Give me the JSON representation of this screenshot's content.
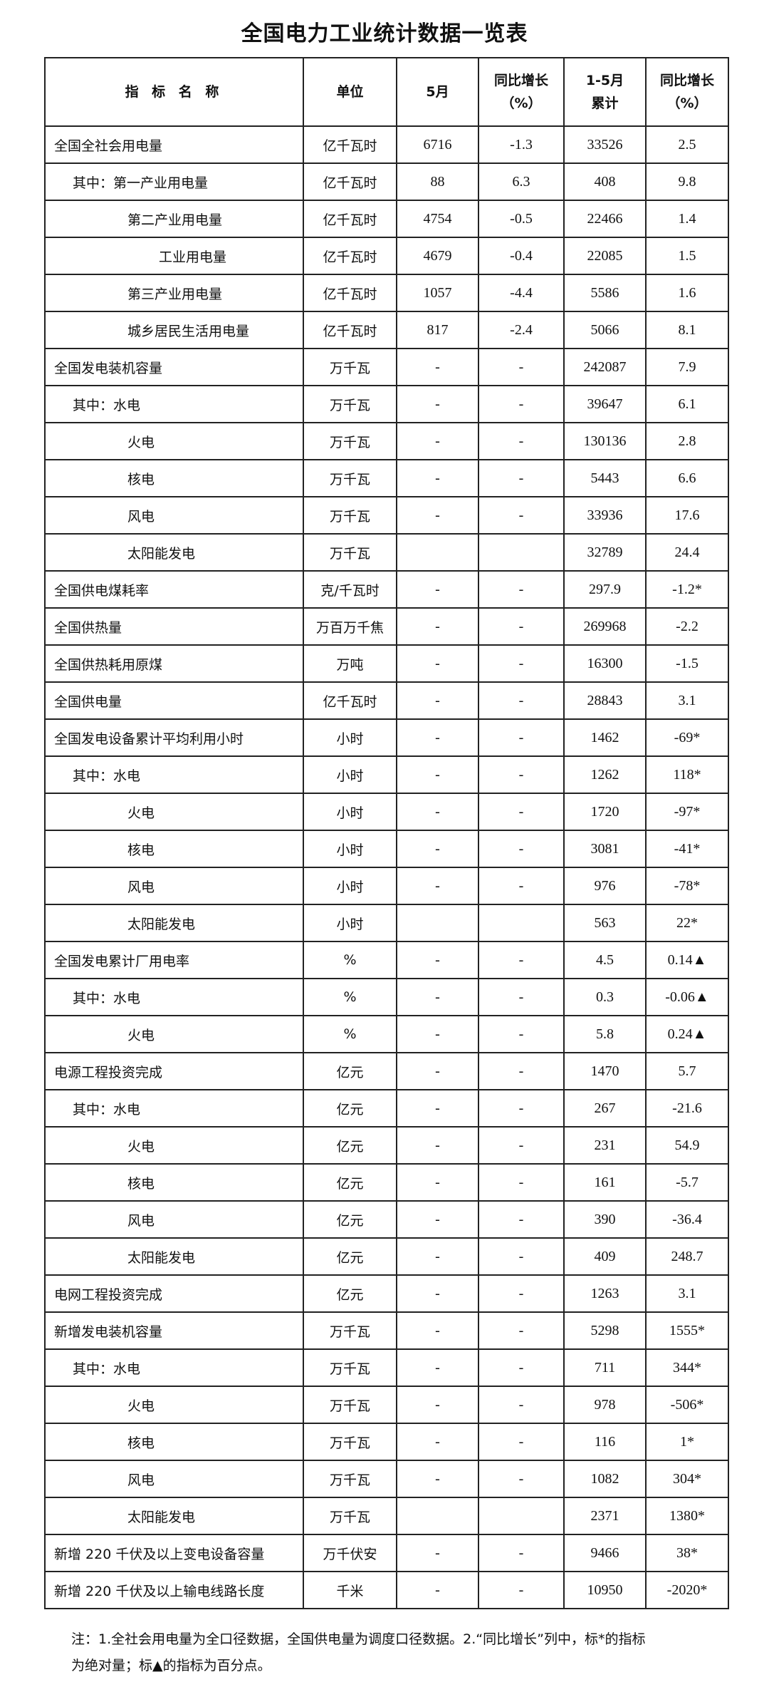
{
  "title": "全国电力工业统计数据一览表",
  "headers": [
    "指 标 名 称",
    "单位",
    "5月",
    "同比增长\n（%）",
    "1-5月\n累计",
    "同比增长\n（%）"
  ],
  "rows": [
    {
      "name": "全国全社会用电量",
      "level": 0,
      "unit": "亿千瓦时",
      "m5": "6716",
      "m5_yoy": "-1.3",
      "cum": "33526",
      "cum_yoy": "2.5"
    },
    {
      "name": "其中：第一产业用电量",
      "level": 1,
      "unit": "亿千瓦时",
      "m5": "88",
      "m5_yoy": "6.3",
      "cum": "408",
      "cum_yoy": "9.8"
    },
    {
      "name": "第二产业用电量",
      "level": 2,
      "unit": "亿千瓦时",
      "m5": "4754",
      "m5_yoy": "-0.5",
      "cum": "22466",
      "cum_yoy": "1.4"
    },
    {
      "name": "工业用电量",
      "level": 3,
      "unit": "亿千瓦时",
      "m5": "4679",
      "m5_yoy": "-0.4",
      "cum": "22085",
      "cum_yoy": "1.5"
    },
    {
      "name": "第三产业用电量",
      "level": 2,
      "unit": "亿千瓦时",
      "m5": "1057",
      "m5_yoy": "-4.4",
      "cum": "5586",
      "cum_yoy": "1.6"
    },
    {
      "name": "城乡居民生活用电量",
      "level": 2,
      "unit": "亿千瓦时",
      "m5": "817",
      "m5_yoy": "-2.4",
      "cum": "5066",
      "cum_yoy": "8.1"
    },
    {
      "name": "全国发电装机容量",
      "level": 0,
      "unit": "万千瓦",
      "m5": "-",
      "m5_yoy": "-",
      "cum": "242087",
      "cum_yoy": "7.9"
    },
    {
      "name": "其中：水电",
      "level": 1,
      "unit": "万千瓦",
      "m5": "-",
      "m5_yoy": "-",
      "cum": "39647",
      "cum_yoy": "6.1"
    },
    {
      "name": "火电",
      "level": 2,
      "unit": "万千瓦",
      "m5": "-",
      "m5_yoy": "-",
      "cum": "130136",
      "cum_yoy": "2.8"
    },
    {
      "name": "核电",
      "level": 2,
      "unit": "万千瓦",
      "m5": "-",
      "m5_yoy": "-",
      "cum": "5443",
      "cum_yoy": "6.6"
    },
    {
      "name": "风电",
      "level": 2,
      "unit": "万千瓦",
      "m5": "-",
      "m5_yoy": "-",
      "cum": "33936",
      "cum_yoy": "17.6"
    },
    {
      "name": "太阳能发电",
      "level": 2,
      "unit": "万千瓦",
      "m5": "",
      "m5_yoy": "",
      "cum": "32789",
      "cum_yoy": "24.4"
    },
    {
      "name": "全国供电煤耗率",
      "level": 0,
      "unit": "克/千瓦时",
      "m5": "-",
      "m5_yoy": "-",
      "cum": "297.9",
      "cum_yoy": "-1.2*"
    },
    {
      "name": "全国供热量",
      "level": 0,
      "unit": "万百万千焦",
      "m5": "-",
      "m5_yoy": "-",
      "cum": "269968",
      "cum_yoy": "-2.2"
    },
    {
      "name": "全国供热耗用原煤",
      "level": 0,
      "unit": "万吨",
      "m5": "-",
      "m5_yoy": "-",
      "cum": "16300",
      "cum_yoy": "-1.5"
    },
    {
      "name": "全国供电量",
      "level": 0,
      "unit": "亿千瓦时",
      "m5": "-",
      "m5_yoy": "-",
      "cum": "28843",
      "cum_yoy": "3.1"
    },
    {
      "name": "全国发电设备累计平均利用小时",
      "level": 0,
      "unit": "小时",
      "m5": "-",
      "m5_yoy": "-",
      "cum": "1462",
      "cum_yoy": "-69*"
    },
    {
      "name": "其中：水电",
      "level": 1,
      "unit": "小时",
      "m5": "-",
      "m5_yoy": "-",
      "cum": "1262",
      "cum_yoy": "118*"
    },
    {
      "name": "火电",
      "level": 2,
      "unit": "小时",
      "m5": "-",
      "m5_yoy": "-",
      "cum": "1720",
      "cum_yoy": "-97*"
    },
    {
      "name": "核电",
      "level": 2,
      "unit": "小时",
      "m5": "-",
      "m5_yoy": "-",
      "cum": "3081",
      "cum_yoy": "-41*"
    },
    {
      "name": "风电",
      "level": 2,
      "unit": "小时",
      "m5": "-",
      "m5_yoy": "-",
      "cum": "976",
      "cum_yoy": "-78*"
    },
    {
      "name": "太阳能发电",
      "level": 2,
      "unit": "小时",
      "m5": "",
      "m5_yoy": "",
      "cum": "563",
      "cum_yoy": "22*"
    },
    {
      "name": "全国发电累计厂用电率",
      "level": 0,
      "unit": "%",
      "m5": "-",
      "m5_yoy": "-",
      "cum": "4.5",
      "cum_yoy": "0.14▲"
    },
    {
      "name": "其中：水电",
      "level": 1,
      "unit": "%",
      "m5": "-",
      "m5_yoy": "-",
      "cum": "0.3",
      "cum_yoy": "-0.06▲"
    },
    {
      "name": "火电",
      "level": 2,
      "unit": "%",
      "m5": "-",
      "m5_yoy": "-",
      "cum": "5.8",
      "cum_yoy": "0.24▲"
    },
    {
      "name": "电源工程投资完成",
      "level": 0,
      "unit": "亿元",
      "m5": "-",
      "m5_yoy": "-",
      "cum": "1470",
      "cum_yoy": "5.7"
    },
    {
      "name": "其中：水电",
      "level": 1,
      "unit": "亿元",
      "m5": "-",
      "m5_yoy": "-",
      "cum": "267",
      "cum_yoy": "-21.6"
    },
    {
      "name": "火电",
      "level": 2,
      "unit": "亿元",
      "m5": "-",
      "m5_yoy": "-",
      "cum": "231",
      "cum_yoy": "54.9"
    },
    {
      "name": "核电",
      "level": 2,
      "unit": "亿元",
      "m5": "-",
      "m5_yoy": "-",
      "cum": "161",
      "cum_yoy": "-5.7"
    },
    {
      "name": "风电",
      "level": 2,
      "unit": "亿元",
      "m5": "-",
      "m5_yoy": "-",
      "cum": "390",
      "cum_yoy": "-36.4"
    },
    {
      "name": "太阳能发电",
      "level": 2,
      "unit": "亿元",
      "m5": "-",
      "m5_yoy": "-",
      "cum": "409",
      "cum_yoy": "248.7"
    },
    {
      "name": "电网工程投资完成",
      "level": 0,
      "unit": "亿元",
      "m5": "-",
      "m5_yoy": "-",
      "cum": "1263",
      "cum_yoy": "3.1"
    },
    {
      "name": "新增发电装机容量",
      "level": 0,
      "unit": "万千瓦",
      "m5": "-",
      "m5_yoy": "-",
      "cum": "5298",
      "cum_yoy": "1555*"
    },
    {
      "name": "其中：水电",
      "level": 1,
      "unit": "万千瓦",
      "m5": "-",
      "m5_yoy": "-",
      "cum": "711",
      "cum_yoy": "344*"
    },
    {
      "name": "火电",
      "level": 2,
      "unit": "万千瓦",
      "m5": "-",
      "m5_yoy": "-",
      "cum": "978",
      "cum_yoy": "-506*"
    },
    {
      "name": "核电",
      "level": 2,
      "unit": "万千瓦",
      "m5": "-",
      "m5_yoy": "-",
      "cum": "116",
      "cum_yoy": "1*"
    },
    {
      "name": "风电",
      "level": 2,
      "unit": "万千瓦",
      "m5": "-",
      "m5_yoy": "-",
      "cum": "1082",
      "cum_yoy": "304*"
    },
    {
      "name": "太阳能发电",
      "level": 2,
      "unit": "万千瓦",
      "m5": "",
      "m5_yoy": "",
      "cum": "2371",
      "cum_yoy": "1380*"
    },
    {
      "name": "新增 220 千伏及以上变电设备容量",
      "level": 0,
      "unit": "万千伏安",
      "m5": "-",
      "m5_yoy": "-",
      "cum": "9466",
      "cum_yoy": "38*"
    },
    {
      "name": "新增 220 千伏及以上输电线路长度",
      "level": 0,
      "unit": "千米",
      "m5": "-",
      "m5_yoy": "-",
      "cum": "10950",
      "cum_yoy": "-2020*"
    }
  ],
  "note_line1": "注：1.全社会用电量为全口径数据，全国供电量为调度口径数据。2.“同比增长”列中，标*的指标",
  "note_line2": "为绝对量；标▲的指标为百分点。"
}
